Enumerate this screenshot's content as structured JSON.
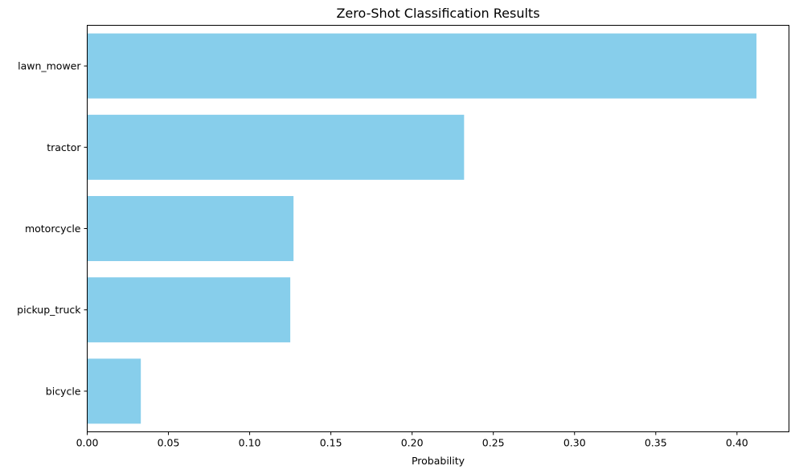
{
  "chart_data": {
    "type": "bar",
    "orientation": "horizontal",
    "title": "Zero-Shot Classification Results",
    "xlabel": "Probability",
    "ylabel": "",
    "categories": [
      "lawn_mower",
      "tractor",
      "motorcycle",
      "pickup_truck",
      "bicycle"
    ],
    "values": [
      0.412,
      0.232,
      0.127,
      0.125,
      0.033
    ],
    "xlim": [
      0,
      0.432
    ],
    "xticks": [
      0.0,
      0.05,
      0.1,
      0.15,
      0.2,
      0.25,
      0.3,
      0.35,
      0.4
    ],
    "xtick_labels": [
      "0.00",
      "0.05",
      "0.10",
      "0.15",
      "0.20",
      "0.25",
      "0.30",
      "0.35",
      "0.40"
    ],
    "bar_color": "#87ceeb",
    "grid": false,
    "legend": "none"
  }
}
